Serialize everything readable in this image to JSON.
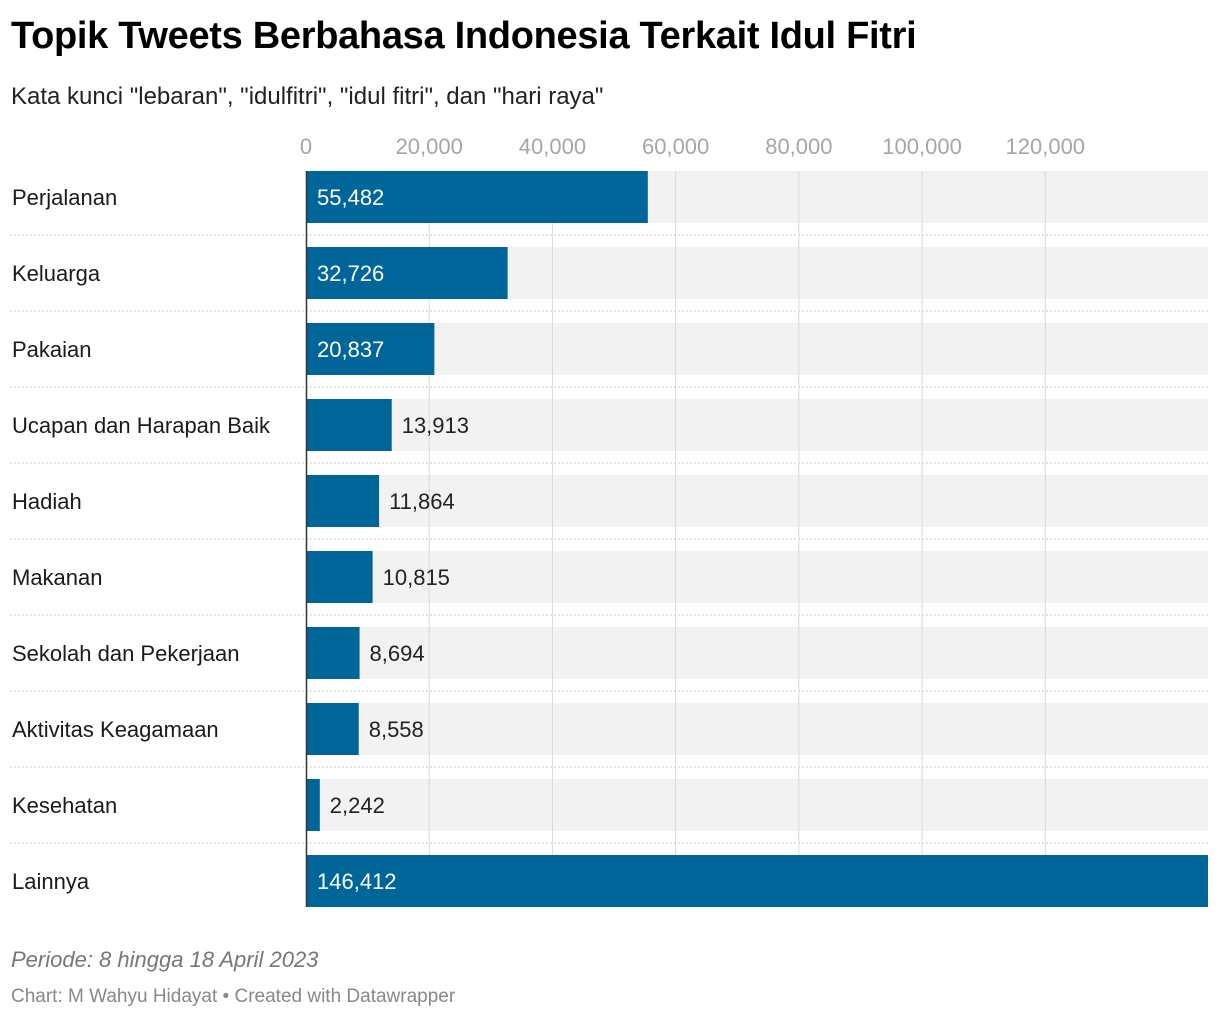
{
  "header": {
    "title": "Topik Tweets Berbahasa Indonesia Terkait Idul Fitri",
    "subtitle": "Kata kunci \"lebaran\", \"idulfitri\", \"idul fitri\", dan \"hari raya\""
  },
  "chart_data": {
    "type": "bar",
    "orientation": "horizontal",
    "categories": [
      "Perjalanan",
      "Keluarga",
      "Pakaian",
      "Ucapan dan Harapan Baik",
      "Hadiah",
      "Makanan",
      "Sekolah dan Pekerjaan",
      "Aktivitas Keagamaan",
      "Kesehatan",
      "Lainnya"
    ],
    "values": [
      55482,
      32726,
      20837,
      13913,
      11864,
      10815,
      8694,
      8558,
      2242,
      146412
    ],
    "value_labels": [
      "55,482",
      "32,726",
      "20,837",
      "13,913",
      "11,864",
      "10,815",
      "8,694",
      "8,558",
      "2,242",
      "146,412"
    ],
    "x_ticks": [
      0,
      20000,
      40000,
      60000,
      80000,
      100000,
      120000
    ],
    "x_tick_labels": [
      "0",
      "20,000",
      "40,000",
      "60,000",
      "80,000",
      "100,000",
      "120,000"
    ],
    "xlim": [
      0,
      146412
    ],
    "grid": true,
    "axis_position": "top"
  },
  "colors": {
    "bar": "#006699",
    "track": "#f2f2f2",
    "grid": "#d9d9d9",
    "label_inside": "#ffffff",
    "label_outside": "#222222"
  },
  "footer": {
    "note": "Periode: 8 hingga 18 April 2023",
    "credit_prefix": "Chart: M Wahyu Hidayat",
    "separator": "•",
    "credit_suffix": "Created with Datawrapper"
  }
}
